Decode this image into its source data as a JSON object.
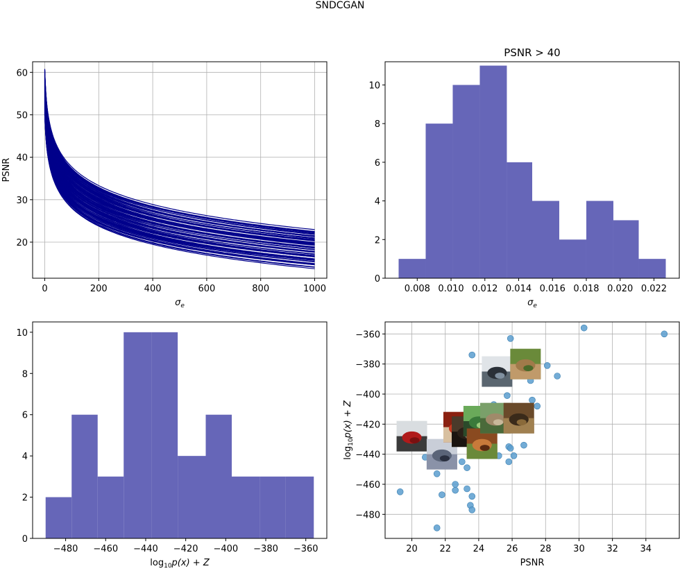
{
  "figure": {
    "title": "SNDCGAN"
  },
  "colors": {
    "line": "#00008b",
    "hist": "#6666b8",
    "scatter": "#5a9ecf",
    "grid": "#b0b0b0"
  },
  "chart_data": [
    {
      "type": "line",
      "title": "",
      "xlabel": "σe",
      "ylabel": "PSNR",
      "xlim": [
        -45,
        1045
      ],
      "ylim": [
        11.5,
        62.5
      ],
      "xticks": [
        0,
        200,
        400,
        600,
        800,
        1000
      ],
      "yticks": [
        20,
        30,
        40,
        50,
        60
      ],
      "grid": true,
      "series_description": "many curves PSNR = c - k*ln(1+x/3)",
      "curve_start": {
        "x": 0,
        "y_min": 50,
        "y_max": 60.8
      },
      "curve_end_range": {
        "x": 1000,
        "y_min": 14,
        "y_max": 22.5
      }
    },
    {
      "type": "bar",
      "title": "PSNR > 40",
      "xlabel": "σe",
      "ylabel": "",
      "bin_edges": [
        0.0069,
        0.0085,
        0.0101,
        0.0117,
        0.0133,
        0.0148,
        0.0164,
        0.018,
        0.0196,
        0.0211,
        0.0227
      ],
      "values": [
        1,
        8,
        10,
        11,
        6,
        4,
        2,
        4,
        3,
        1
      ],
      "xlim": [
        0.0061,
        0.0235
      ],
      "ylim": [
        0,
        11.2
      ],
      "xticks": [
        0.008,
        0.01,
        0.012,
        0.014,
        0.016,
        0.018,
        0.02,
        0.022
      ],
      "xtick_labels": [
        "0.008",
        "0.010",
        "0.012",
        "0.014",
        "0.016",
        "0.018",
        "0.020",
        "0.022"
      ],
      "yticks": [
        0,
        2,
        4,
        6,
        8,
        10
      ],
      "grid": false
    },
    {
      "type": "bar",
      "title": "",
      "xlabel": "log10p(x) + Z",
      "ylabel": "",
      "bin_edges": [
        -490,
        -477,
        -464,
        -451,
        -437,
        -424,
        -410,
        -397,
        -383,
        -370,
        -356
      ],
      "values": [
        2,
        6,
        3,
        10,
        10,
        4,
        6,
        3,
        3,
        3
      ],
      "xlim": [
        -496.5,
        -349.5
      ],
      "ylim": [
        0,
        10.5
      ],
      "xticks": [
        -480,
        -460,
        -440,
        -420,
        -400,
        -380,
        -360
      ],
      "yticks": [
        0,
        2,
        4,
        6,
        8,
        10
      ],
      "grid": false
    },
    {
      "type": "scatter",
      "title": "",
      "xlabel": "PSNR",
      "ylabel": "log10p(x) + Z",
      "xlim": [
        18.4,
        36.0
      ],
      "ylim": [
        -496,
        -352
      ],
      "xticks": [
        20,
        22,
        24,
        26,
        28,
        30,
        32,
        34
      ],
      "yticks": [
        -480,
        -460,
        -440,
        -420,
        -400,
        -380,
        -360
      ],
      "grid": true,
      "points": [
        {
          "x": 19.3,
          "y": -465
        },
        {
          "x": 20.8,
          "y": -442
        },
        {
          "x": 21.5,
          "y": -453
        },
        {
          "x": 21.5,
          "y": -489
        },
        {
          "x": 21.8,
          "y": -467
        },
        {
          "x": 22.1,
          "y": -438
        },
        {
          "x": 22.3,
          "y": -432
        },
        {
          "x": 22.6,
          "y": -460
        },
        {
          "x": 22.6,
          "y": -464
        },
        {
          "x": 23.0,
          "y": -445
        },
        {
          "x": 23.3,
          "y": -449
        },
        {
          "x": 23.3,
          "y": -463
        },
        {
          "x": 23.5,
          "y": -474
        },
        {
          "x": 23.6,
          "y": -477
        },
        {
          "x": 23.6,
          "y": -468
        },
        {
          "x": 23.6,
          "y": -374
        },
        {
          "x": 23.8,
          "y": -415
        },
        {
          "x": 24.0,
          "y": -426
        },
        {
          "x": 24.3,
          "y": -411
        },
        {
          "x": 24.4,
          "y": -433
        },
        {
          "x": 24.9,
          "y": -407
        },
        {
          "x": 25.0,
          "y": -408
        },
        {
          "x": 25.2,
          "y": -441
        },
        {
          "x": 25.7,
          "y": -401
        },
        {
          "x": 25.8,
          "y": -435
        },
        {
          "x": 25.8,
          "y": -445
        },
        {
          "x": 25.9,
          "y": -363
        },
        {
          "x": 25.9,
          "y": -436
        },
        {
          "x": 26.1,
          "y": -441
        },
        {
          "x": 26.7,
          "y": -434
        },
        {
          "x": 27.1,
          "y": -391
        },
        {
          "x": 27.2,
          "y": -404
        },
        {
          "x": 27.5,
          "y": -408
        },
        {
          "x": 28.1,
          "y": -381
        },
        {
          "x": 28.7,
          "y": -388
        },
        {
          "x": 30.3,
          "y": -356
        },
        {
          "x": 35.1,
          "y": -360
        }
      ],
      "thumbnails": [
        {
          "name": "red-car",
          "x": 20.0,
          "y": -428,
          "colors": [
            "#d9dde0",
            "#b01a1a",
            "#7a1010",
            "#3a3a3a"
          ]
        },
        {
          "name": "grey-truck",
          "x": 21.8,
          "y": -440,
          "colors": [
            "#c9ced8",
            "#5a6478",
            "#2a3040",
            "#8a92a8"
          ]
        },
        {
          "name": "red-animal",
          "x": 22.8,
          "y": -422,
          "colors": [
            "#8a2010",
            "#c83a20",
            "#5a1a10",
            "#d8c0a0"
          ]
        },
        {
          "name": "dark-object",
          "x": 23.3,
          "y": -425,
          "colors": [
            "#4a3a2a",
            "#2a2018",
            "#7a6a58",
            "#1a1410"
          ]
        },
        {
          "name": "green-bird",
          "x": 24.0,
          "y": -418,
          "colors": [
            "#6aaa5a",
            "#3a7a3a",
            "#9aca7a",
            "#2a4a2a"
          ]
        },
        {
          "name": "frog",
          "x": 24.2,
          "y": -433,
          "colors": [
            "#8a4a20",
            "#c87a3a",
            "#5a2a10",
            "#6a8a3a"
          ]
        },
        {
          "name": "horse-field",
          "x": 25.0,
          "y": -416,
          "colors": [
            "#7aa06a",
            "#a08a6a",
            "#c8b89a",
            "#4a6a3a"
          ]
        },
        {
          "name": "ship",
          "x": 25.1,
          "y": -385,
          "colors": [
            "#e0e4e8",
            "#2a3038",
            "#8090a0",
            "#5a6670"
          ]
        },
        {
          "name": "brown-animal",
          "x": 26.4,
          "y": -416,
          "colors": [
            "#6a4a2a",
            "#3a2a1a",
            "#8a6a3a",
            "#a08050"
          ]
        },
        {
          "name": "deer",
          "x": 26.8,
          "y": -380,
          "colors": [
            "#6a8a3a",
            "#a07a4a",
            "#4a6a2a",
            "#c09a6a"
          ]
        }
      ]
    }
  ]
}
